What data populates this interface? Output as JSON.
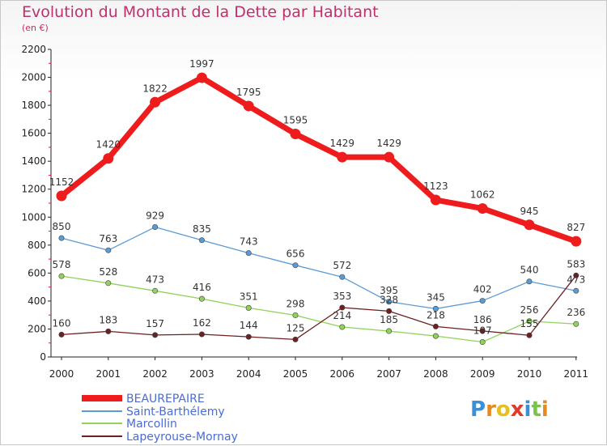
{
  "header": {
    "title": "Evolution du Montant de la Dette par Habitant",
    "subtitle": "(en €)"
  },
  "logo": {
    "text": "Proxiti",
    "letters": [
      "P",
      "r",
      "o",
      "x",
      "i",
      "t",
      "i"
    ],
    "colors": [
      "#3a8fd6",
      "#e58a1f",
      "#e5c020",
      "#e03a2a",
      "#3a8fd6",
      "#7cc34a",
      "#e58a1f"
    ]
  },
  "chart_data": {
    "type": "line",
    "x": [
      "2000",
      "2001",
      "2002",
      "2003",
      "2004",
      "2005",
      "2006",
      "2007",
      "2008",
      "2009",
      "2010",
      "2011"
    ],
    "ylim": [
      0,
      2200
    ],
    "yticks": [
      0,
      200,
      400,
      600,
      800,
      1000,
      1200,
      1400,
      1600,
      1800,
      2000,
      2200
    ],
    "grid": false,
    "legend_position": "bottom-left",
    "series": [
      {
        "name": "BEAUREPAIRE",
        "color": "#ee1c1c",
        "values": [
          1152,
          1420,
          1822,
          1997,
          1795,
          1595,
          1429,
          1429,
          1123,
          1062,
          945,
          827
        ]
      },
      {
        "name": "Saint-Barthélemy",
        "color": "#5b9bd5",
        "values": [
          850,
          763,
          929,
          835,
          743,
          656,
          572,
          395,
          345,
          402,
          540,
          473
        ]
      },
      {
        "name": "Marcollin",
        "color": "#8fd35a",
        "values": [
          578,
          528,
          473,
          416,
          351,
          298,
          214,
          185,
          150,
          107,
          256,
          236
        ]
      },
      {
        "name": "Lapeyrouse-Mornay",
        "color": "#6e1f22",
        "values": [
          160,
          183,
          157,
          162,
          144,
          125,
          353,
          328,
          218,
          186,
          155,
          583
        ]
      }
    ],
    "point_labels": [
      [
        "1152",
        "1420",
        "1822",
        "1997",
        "1795",
        "1595",
        "1429",
        "1429",
        "1123",
        "1062",
        "945",
        "827"
      ],
      [
        "850",
        "763",
        "929",
        "835",
        "743",
        "656",
        "572",
        "395",
        "345",
        "402",
        "540",
        "473"
      ],
      [
        "578",
        "528",
        "473",
        "416",
        "351",
        "298",
        "214",
        "185",
        "",
        "107",
        "256",
        "236"
      ],
      [
        "160",
        "183",
        "157",
        "162",
        "144",
        "125",
        "353",
        "328",
        "218",
        "186",
        "155",
        "583"
      ]
    ]
  }
}
